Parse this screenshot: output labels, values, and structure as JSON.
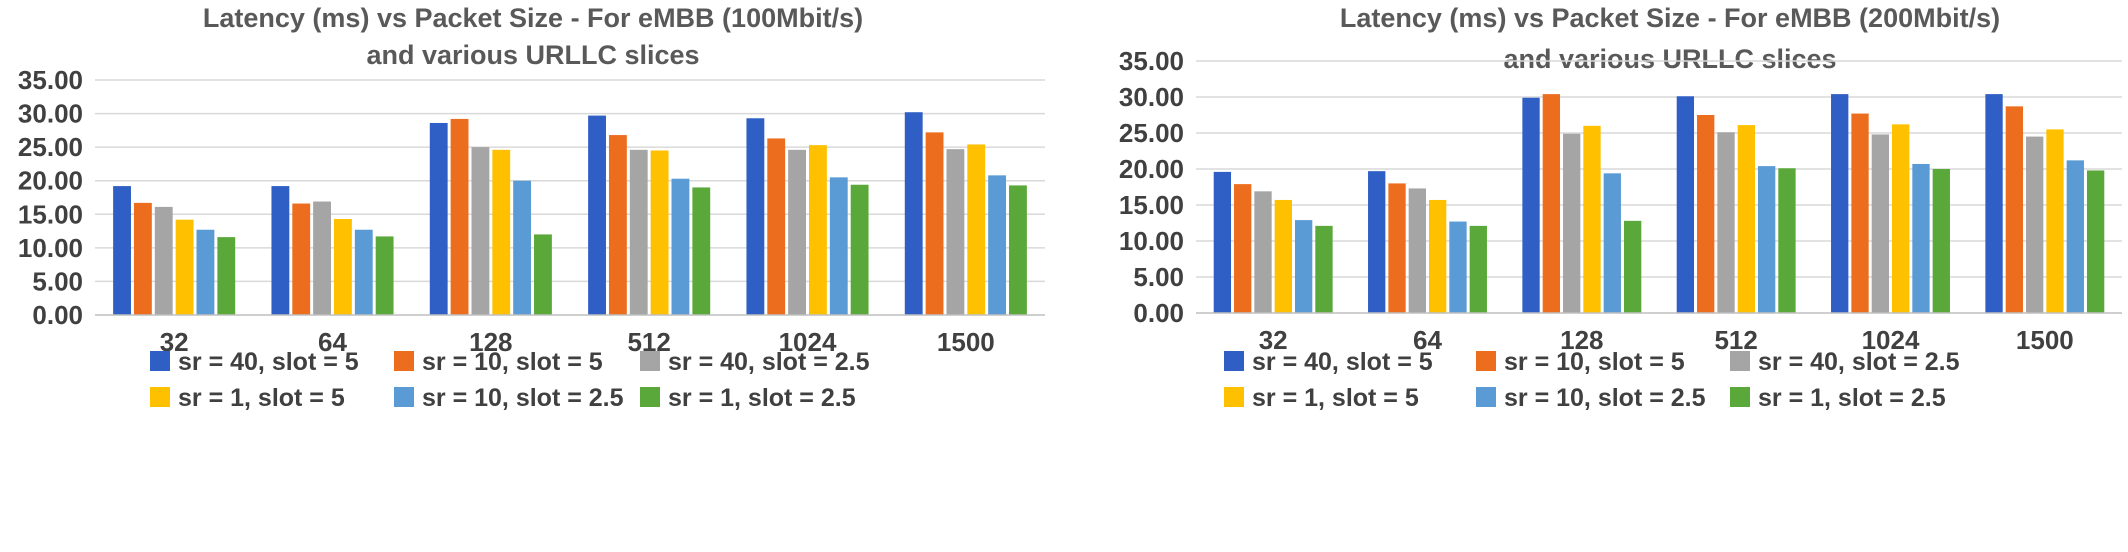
{
  "chart_data": [
    {
      "type": "bar",
      "title": "Latency (ms) vs Packet Size - For eMBB (100Mbit/s)",
      "subtitle": "and various URLLC slices",
      "xlabel": "",
      "ylabel": "",
      "categories": [
        "32",
        "64",
        "128",
        "512",
        "1024",
        "1500"
      ],
      "ylim": [
        0,
        35
      ],
      "yticks": [
        "0.00",
        "5.00",
        "10.00",
        "15.00",
        "20.00",
        "25.00",
        "30.00",
        "35.00"
      ],
      "grid": true,
      "legend_position": "bottom",
      "series": [
        {
          "name": "sr = 40, slot = 5",
          "color": "#2F5EC4",
          "values": [
            19.2,
            19.2,
            28.6,
            29.7,
            29.3,
            30.2
          ]
        },
        {
          "name": "sr = 10, slot = 5",
          "color": "#ED6D1F",
          "values": [
            16.7,
            16.6,
            29.2,
            26.8,
            26.3,
            27.2
          ]
        },
        {
          "name": "sr = 40, slot = 2.5",
          "color": "#A5A5A5",
          "values": [
            16.1,
            16.9,
            25.0,
            24.6,
            24.6,
            24.7
          ]
        },
        {
          "name": "sr = 1, slot = 5",
          "color": "#FFC000",
          "values": [
            14.2,
            14.3,
            24.6,
            24.5,
            25.3,
            25.4
          ]
        },
        {
          "name": "sr = 10, slot = 2.5",
          "color": "#5B9BD5",
          "values": [
            12.7,
            12.7,
            20.0,
            20.3,
            20.5,
            20.8
          ]
        },
        {
          "name": "sr = 1, slot = 2.5",
          "color": "#5AA83A",
          "values": [
            11.6,
            11.7,
            12.0,
            19.0,
            19.4,
            19.3
          ]
        }
      ]
    },
    {
      "type": "bar",
      "title": "Latency (ms) vs Packet Size - For eMBB (200Mbit/s)",
      "subtitle": "and various URLLC slices",
      "xlabel": "",
      "ylabel": "",
      "categories": [
        "32",
        "64",
        "128",
        "512",
        "1024",
        "1500"
      ],
      "ylim": [
        0,
        35
      ],
      "yticks": [
        "0.00",
        "5.00",
        "10.00",
        "15.00",
        "20.00",
        "25.00",
        "30.00",
        "35.00"
      ],
      "grid": true,
      "legend_position": "bottom",
      "series": [
        {
          "name": "sr = 40, slot = 5",
          "color": "#2F5EC4",
          "values": [
            19.6,
            19.7,
            29.9,
            30.1,
            30.4,
            30.4
          ]
        },
        {
          "name": "sr = 10, slot = 5",
          "color": "#ED6D1F",
          "values": [
            17.9,
            18.0,
            30.4,
            27.5,
            27.7,
            28.7
          ]
        },
        {
          "name": "sr = 40, slot = 2.5",
          "color": "#A5A5A5",
          "values": [
            16.9,
            17.3,
            24.9,
            25.1,
            24.8,
            24.5
          ]
        },
        {
          "name": "sr = 1, slot = 5",
          "color": "#FFC000",
          "values": [
            15.7,
            15.7,
            26.0,
            26.1,
            26.2,
            25.5
          ]
        },
        {
          "name": "sr = 10, slot = 2.5",
          "color": "#5B9BD5",
          "values": [
            12.9,
            12.7,
            19.4,
            20.4,
            20.7,
            21.2
          ]
        },
        {
          "name": "sr = 1, slot = 2.5",
          "color": "#5AA83A",
          "values": [
            12.1,
            12.1,
            12.8,
            20.1,
            20.0,
            19.8
          ]
        }
      ]
    }
  ]
}
